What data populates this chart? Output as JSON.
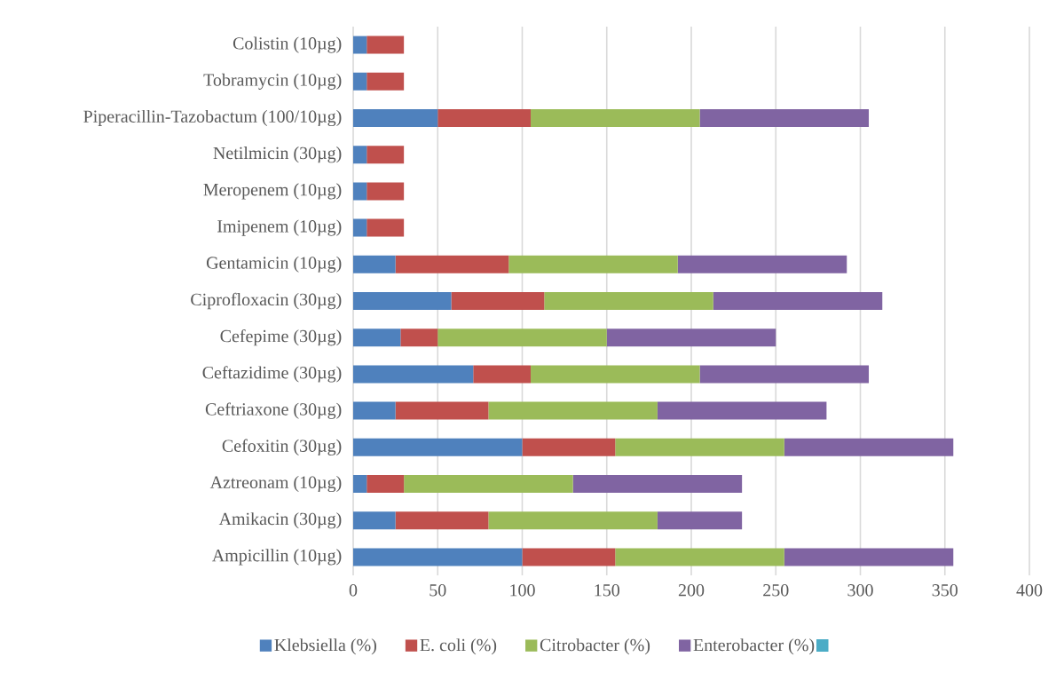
{
  "chart_data": {
    "type": "bar",
    "orientation": "horizontal",
    "stacked": true,
    "categories": [
      "Colistin (10µg)",
      "Tobramycin (10µg)",
      "Piperacillin-Tazobactum (100/10µg)",
      "Netilmicin (30µg)",
      "Meropenem (10µg)",
      "Imipenem (10µg)",
      "Gentamicin (10µg)",
      "Ciprofloxacin (30µg)",
      "Cefepime (30µg)",
      "Ceftazidime (30µg)",
      "Ceftriaxone (30µg)",
      "Cefoxitin (30µg)",
      "Aztreonam (10µg)",
      "Amikacin (30µg)",
      "Ampicillin (10µg)"
    ],
    "series": [
      {
        "name": "Klebsiella (%)",
        "color": "#4f81bd",
        "values": [
          8,
          8,
          50,
          8,
          8,
          8,
          25,
          58,
          28,
          71,
          25,
          100,
          8,
          25,
          100
        ]
      },
      {
        "name": "E. coli (%)",
        "color": "#c0504d",
        "values": [
          22,
          22,
          55,
          22,
          22,
          22,
          67,
          55,
          22,
          34,
          55,
          55,
          22,
          55,
          55
        ]
      },
      {
        "name": "Citrobacter (%)",
        "color": "#9bbb59",
        "values": [
          null,
          null,
          100,
          null,
          null,
          null,
          100,
          100,
          100,
          100,
          100,
          100,
          100,
          100,
          100
        ]
      },
      {
        "name": "Enterobacter (%)",
        "color": "#8064a2",
        "values": [
          null,
          null,
          100,
          null,
          null,
          null,
          100,
          100,
          100,
          100,
          100,
          100,
          100,
          50,
          100
        ]
      },
      {
        "color": "#4bacc6",
        "values": [
          null,
          null,
          null,
          null,
          null,
          null,
          null,
          null,
          null,
          null,
          null,
          null,
          null,
          null,
          null
        ]
      }
    ],
    "xlim": [
      0,
      400
    ],
    "xticks": [
      0,
      50,
      100,
      150,
      200,
      250,
      300,
      350,
      400
    ],
    "grid": "x",
    "legend": "bottom"
  }
}
